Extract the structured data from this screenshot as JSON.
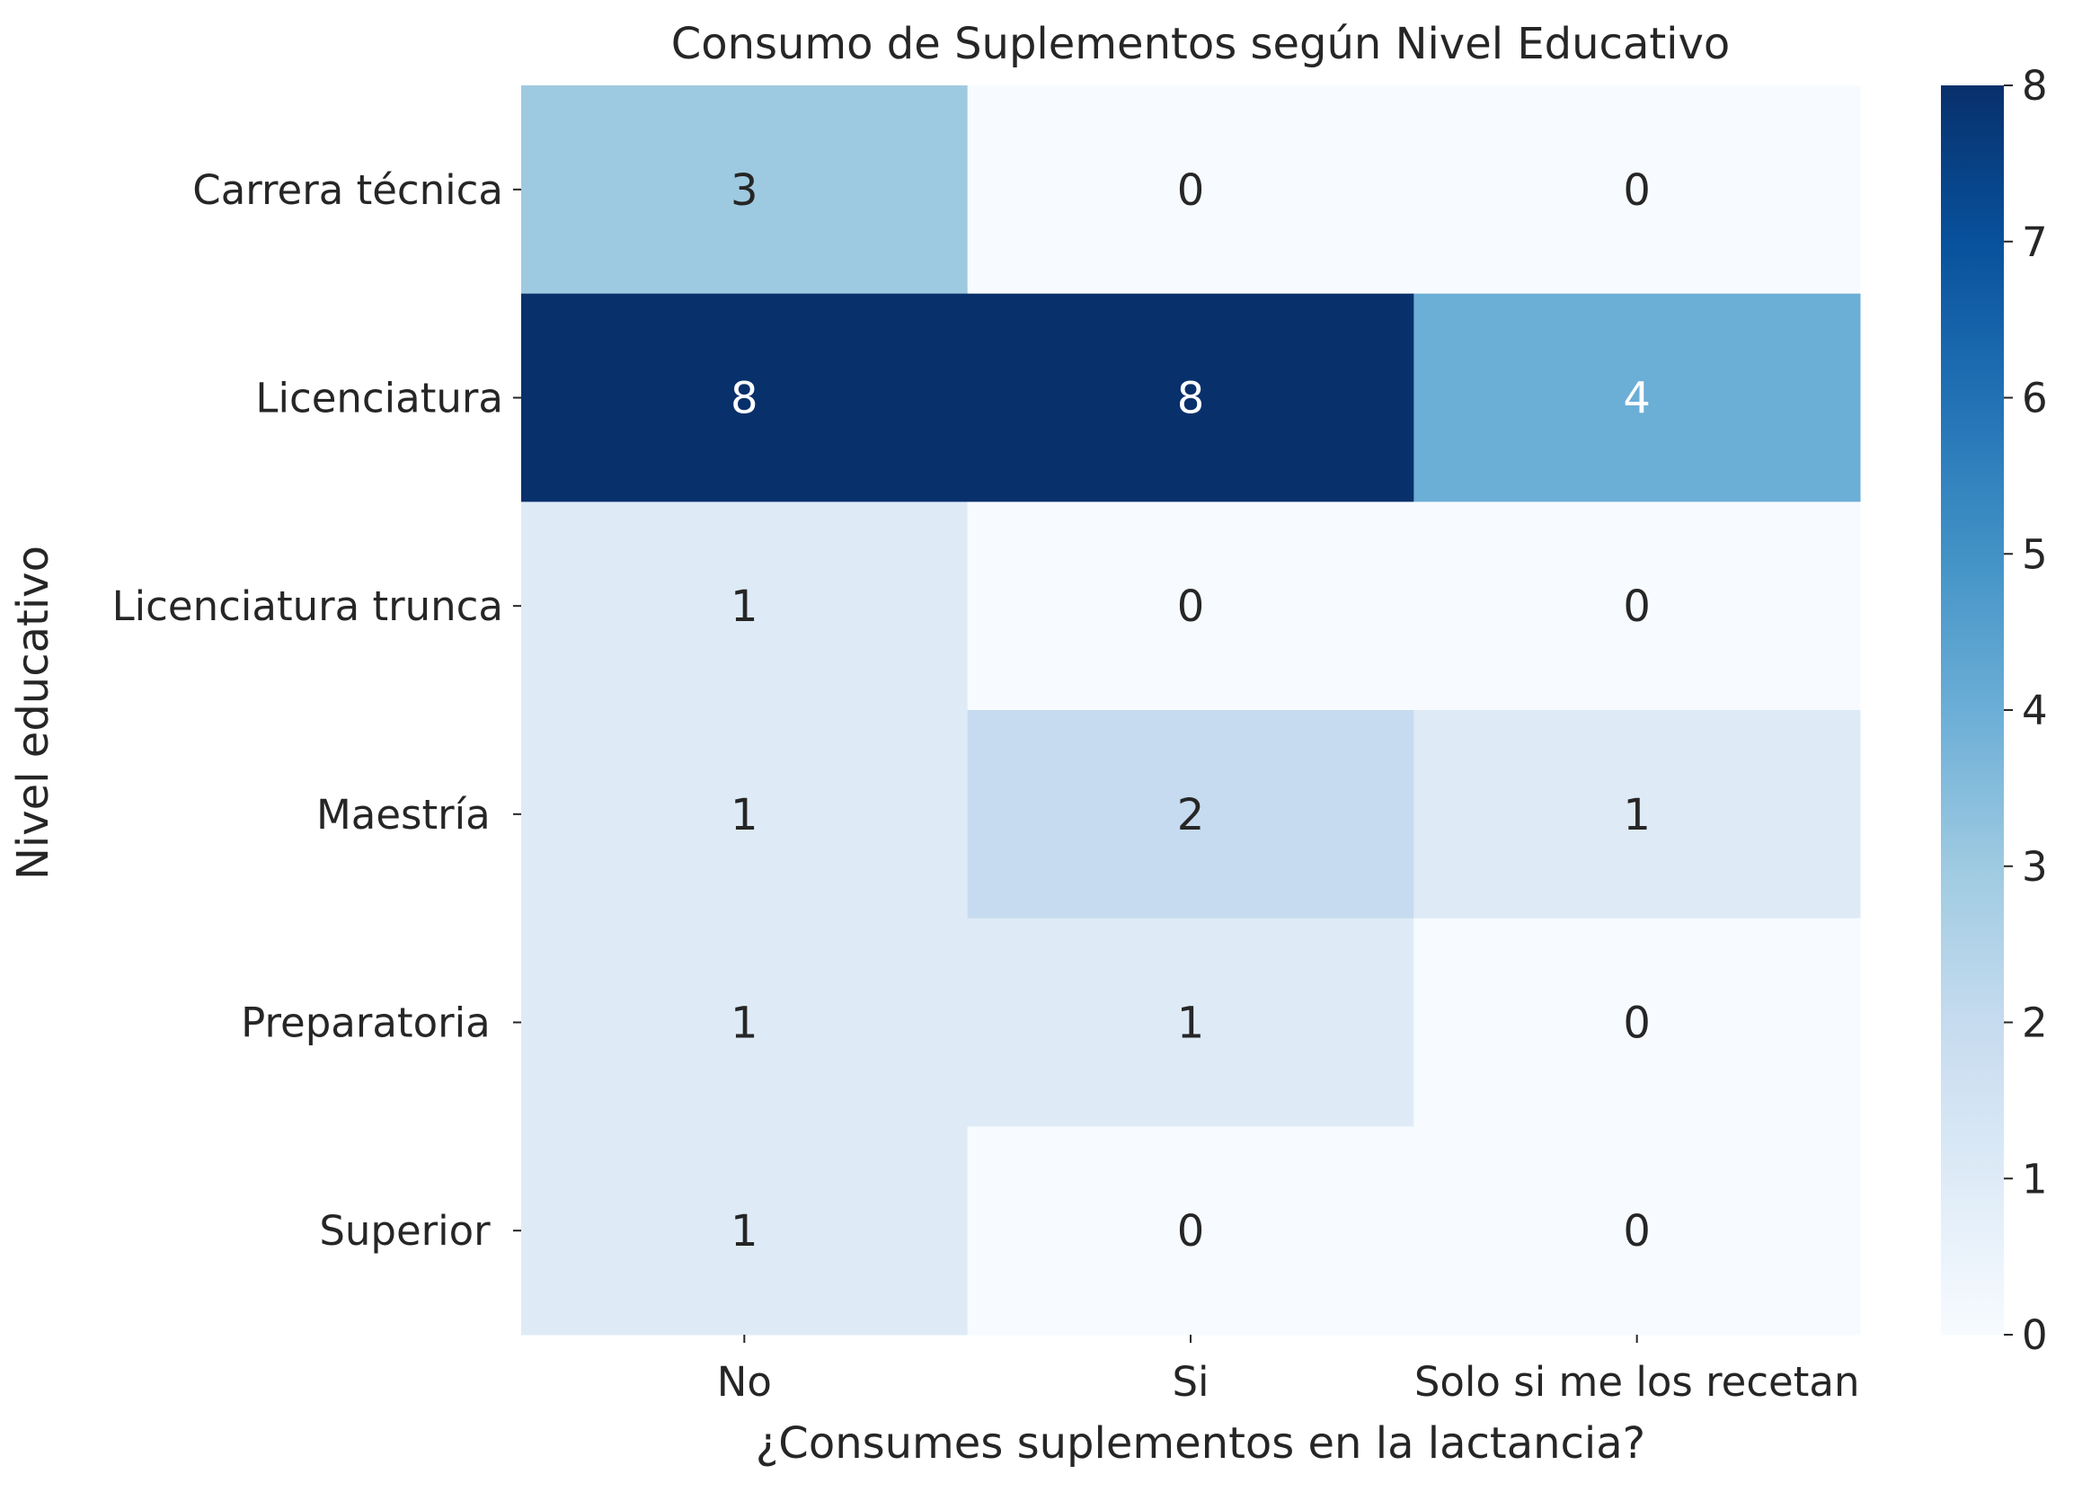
{
  "chart_data": {
    "type": "heatmap",
    "title": "Consumo de Suplementos según Nivel Educativo",
    "xlabel": "¿Consumes suplementos en la lactancia?",
    "ylabel": "Nivel educativo",
    "x_categories": [
      "No",
      "Si",
      "Solo si me los recetan"
    ],
    "y_categories": [
      "Carrera técnica",
      "Licenciatura",
      "Licenciatura trunca",
      "Maestría ",
      "Preparatoria ",
      "Superior "
    ],
    "values": [
      [
        3,
        0,
        0
      ],
      [
        8,
        8,
        4
      ],
      [
        1,
        0,
        0
      ],
      [
        1,
        2,
        1
      ],
      [
        1,
        1,
        0
      ],
      [
        1,
        0,
        0
      ]
    ],
    "colorbar": {
      "min": 0,
      "max": 8,
      "ticks": [
        0,
        1,
        2,
        3,
        4,
        5,
        6,
        7,
        8
      ]
    },
    "colormap": "Blues",
    "annotations": true,
    "grid": false
  }
}
